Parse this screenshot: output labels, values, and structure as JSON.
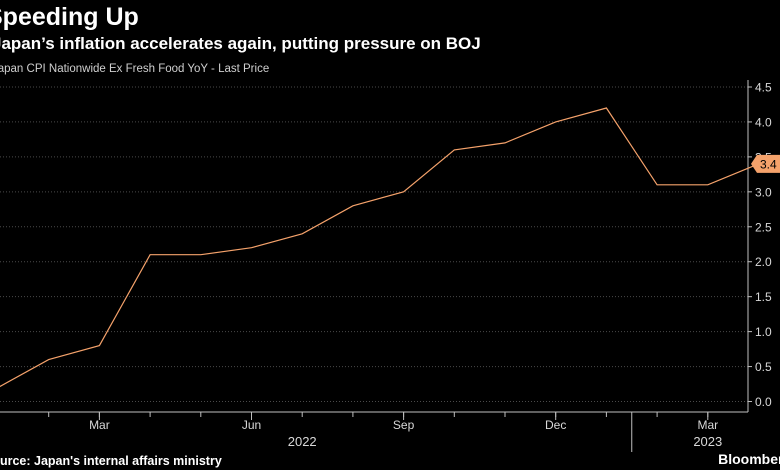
{
  "header": {
    "title": "Speeding Up",
    "subtitle": "Japan’s inflation accelerates again, putting pressure on BOJ",
    "series_label": "Japan CPI Nationwide Ex Fresh Food YoY - Last Price"
  },
  "footer": {
    "source": "Source: Japan's internal affairs ministry",
    "brand": "Bloomberg"
  },
  "colors": {
    "background": "#000000",
    "series_line": "#f5a26b",
    "last_value_badge": "#f5a26b",
    "gridline": "#4a4a4a"
  },
  "chart_data": {
    "type": "line",
    "title": "Speeding Up",
    "subtitle": "Japan’s inflation accelerates again, putting pressure on BOJ",
    "xlabel": "",
    "ylabel": "",
    "x": [
      "2022-01",
      "2022-02",
      "2022-03",
      "2022-04",
      "2022-05",
      "2022-06",
      "2022-07",
      "2022-08",
      "2022-09",
      "2022-10",
      "2022-11",
      "2022-12",
      "2023-01",
      "2023-02",
      "2023-03",
      "2023-04"
    ],
    "series": [
      {
        "name": "Japan CPI Nationwide Ex Fresh Food YoY - Last Price",
        "values": [
          0.2,
          0.6,
          0.8,
          2.1,
          2.1,
          2.2,
          2.4,
          2.8,
          3.0,
          3.6,
          3.7,
          4.0,
          4.2,
          3.1,
          3.1,
          3.4
        ]
      }
    ],
    "last_value_label": "3.4",
    "ylim": [
      -0.15,
      4.6
    ],
    "y_ticks": [
      "0.0",
      "0.5",
      "1.0",
      "1.5",
      "2.0",
      "2.5",
      "3.0",
      "3.5",
      "4.0",
      "4.5"
    ],
    "x_tick_labels": [
      "Mar",
      "Jun",
      "Sep",
      "Dec",
      "Mar"
    ],
    "x_tick_positions": [
      "2022-03",
      "2022-06",
      "2022-09",
      "2022-12",
      "2023-03"
    ],
    "year_labels": [
      {
        "label": "2022",
        "at": "2022-07"
      },
      {
        "label": "2023",
        "at": "2023-03"
      }
    ],
    "year_divider_at": "2023-01",
    "grid": true,
    "axis_side": "right"
  }
}
